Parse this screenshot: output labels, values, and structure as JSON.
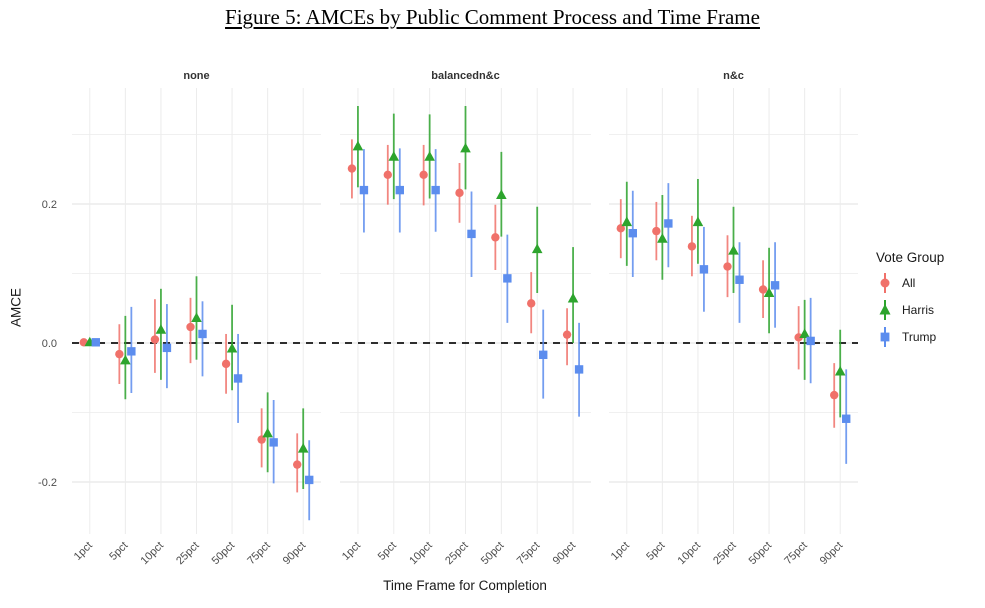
{
  "title": "Figure 5: AMCEs by Public Comment Process and Time Frame",
  "chart_data": {
    "type": "pointrange",
    "title": "Figure 5: AMCEs by Public Comment Process and Time Frame",
    "xlabel": "Time Frame for Completion",
    "ylabel": "AMCE",
    "categories": [
      "1pct",
      "5pct",
      "10pct",
      "25pct",
      "50pct",
      "75pct",
      "90pct"
    ],
    "yticks": [
      -0.2,
      0.0,
      0.2
    ],
    "minor_gridlines": [
      -0.1,
      0.1,
      0.3
    ],
    "ylim": [
      -0.273,
      0.367
    ],
    "zero_line": 0,
    "grid": true,
    "legend": {
      "title": "Vote Group",
      "position": "right",
      "items": [
        {
          "label": "All",
          "shape": "circle",
          "color": "#F0716A"
        },
        {
          "label": "Harris",
          "shape": "triangle",
          "color": "#2DA42D"
        },
        {
          "label": "Trump",
          "shape": "square",
          "color": "#5C8DEE"
        }
      ]
    },
    "facets": [
      {
        "label": "none",
        "series": [
          {
            "name": "All",
            "y": [
              0.001,
              -0.016,
              0.005,
              0.023,
              -0.03,
              -0.139,
              -0.175
            ],
            "lo": [
              -0.004,
              -0.059,
              -0.043,
              -0.029,
              -0.073,
              -0.179,
              -0.215
            ],
            "hi": [
              0.006,
              0.027,
              0.063,
              0.065,
              0.013,
              -0.094,
              -0.13
            ]
          },
          {
            "name": "Harris",
            "y": [
              0.001,
              -0.025,
              0.019,
              0.036,
              -0.008,
              -0.13,
              -0.152
            ],
            "lo": [
              -0.004,
              -0.081,
              -0.053,
              -0.024,
              -0.068,
              -0.186,
              -0.21
            ],
            "hi": [
              0.006,
              0.039,
              0.078,
              0.096,
              0.055,
              -0.071,
              -0.094
            ]
          },
          {
            "name": "Trump",
            "y": [
              0.001,
              -0.012,
              -0.007,
              0.013,
              -0.051,
              -0.143,
              -0.197
            ],
            "lo": [
              -0.004,
              -0.072,
              -0.065,
              -0.048,
              -0.115,
              -0.202,
              -0.255
            ],
            "hi": [
              0.006,
              0.052,
              0.056,
              0.06,
              0.013,
              -0.082,
              -0.14
            ]
          }
        ]
      },
      {
        "label": "balancedn&c",
        "series": [
          {
            "name": "All",
            "y": [
              0.251,
              0.242,
              0.242,
              0.216,
              0.152,
              0.057,
              0.012
            ],
            "lo": [
              0.208,
              0.199,
              0.198,
              0.173,
              0.105,
              0.014,
              -0.032
            ],
            "hi": [
              0.293,
              0.285,
              0.285,
              0.259,
              0.199,
              0.102,
              0.05
            ]
          },
          {
            "name": "Harris",
            "y": [
              0.283,
              0.268,
              0.268,
              0.28,
              0.213,
              0.135,
              0.064
            ],
            "lo": [
              0.224,
              0.207,
              0.208,
              0.221,
              0.153,
              0.072,
              0.0
            ],
            "hi": [
              0.341,
              0.33,
              0.329,
              0.341,
              0.275,
              0.196,
              0.138
            ]
          },
          {
            "name": "Trump",
            "y": [
              0.22,
              0.22,
              0.22,
              0.157,
              0.093,
              -0.017,
              -0.038
            ],
            "lo": [
              0.159,
              0.159,
              0.16,
              0.095,
              0.029,
              -0.08,
              -0.106
            ],
            "hi": [
              0.279,
              0.28,
              0.279,
              0.218,
              0.156,
              0.048,
              0.029
            ]
          }
        ]
      },
      {
        "label": "n&c",
        "series": [
          {
            "name": "All",
            "y": [
              0.165,
              0.161,
              0.139,
              0.11,
              0.077,
              0.008,
              -0.075
            ],
            "lo": [
              0.122,
              0.119,
              0.096,
              0.066,
              0.036,
              -0.038,
              -0.122
            ],
            "hi": [
              0.207,
              0.203,
              0.183,
              0.155,
              0.119,
              0.053,
              -0.029
            ]
          },
          {
            "name": "Harris",
            "y": [
              0.174,
              0.15,
              0.174,
              0.133,
              0.072,
              0.013,
              -0.041
            ],
            "lo": [
              0.111,
              0.091,
              0.114,
              0.072,
              0.014,
              -0.053,
              -0.107
            ],
            "hi": [
              0.232,
              0.213,
              0.236,
              0.196,
              0.137,
              0.062,
              0.019
            ]
          },
          {
            "name": "Trump",
            "y": [
              0.158,
              0.172,
              0.106,
              0.091,
              0.083,
              0.003,
              -0.109
            ],
            "lo": [
              0.095,
              0.109,
              0.045,
              0.029,
              0.022,
              -0.058,
              -0.174
            ],
            "hi": [
              0.219,
              0.23,
              0.167,
              0.145,
              0.145,
              0.065,
              -0.038
            ]
          }
        ]
      }
    ]
  }
}
